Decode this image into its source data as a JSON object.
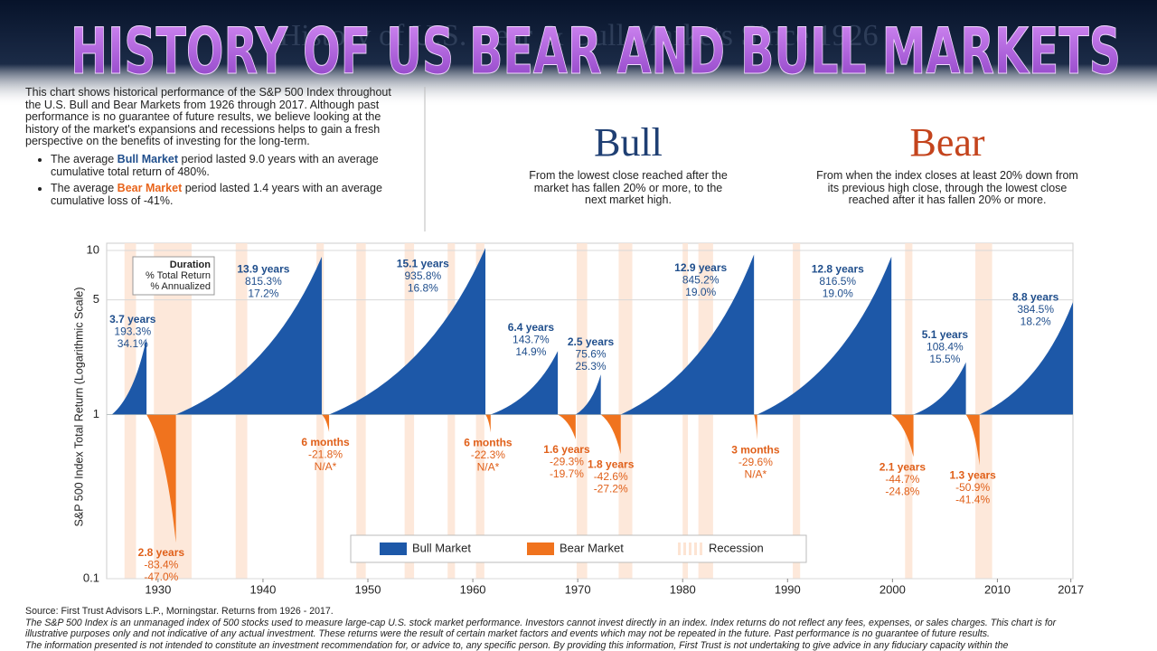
{
  "banner_title": "HISTORY OF US BEAR AND BULL MARKETS",
  "background_title": "History of U.S. Bear & Bull Markets Since 1926",
  "intro": "This chart shows historical performance of the S&P 500 Index throughout the U.S. Bull and Bear Markets from 1926 through 2017. Although past performance is no guarantee of future results, we believe looking at the history of the market's expansions and recessions helps to gain a fresh perspective on the benefits of investing for the long-term.",
  "bullets": [
    [
      "The average ",
      "Bull Market",
      " period lasted 9.0 years with an average cumulative total return of 480%."
    ],
    [
      "The average ",
      "Bear Market",
      " period lasted 1.4 years with an average cumulative loss of -41%."
    ]
  ],
  "bull": {
    "title": "Bull",
    "description": "From the lowest close reached after the market has fallen 20% or more, to the next market high."
  },
  "bear": {
    "title": "Bear",
    "description": "From when the index closes at least 20% down from its previous high close, through the lowest close reached after it has fallen 20% or more."
  },
  "chart_data": {
    "type": "area",
    "ylabel": "S&P 500 Index Total Return (Logarithmic Scale)",
    "log_scale": true,
    "grid": true,
    "ylim": [
      0.1,
      10
    ],
    "yticks": [
      0.1,
      1,
      5,
      10
    ],
    "xlim": [
      1925.1,
      2017.2
    ],
    "xticks": [
      1930,
      1940,
      1950,
      1960,
      1970,
      1980,
      1990,
      2000,
      2010,
      2017
    ],
    "key": [
      "Duration",
      "% Total Return",
      "% Annualized"
    ],
    "legend": [
      {
        "name": "Bull Market",
        "color": "#1d58a8"
      },
      {
        "name": "Bear Market",
        "color": "#f0731e"
      },
      {
        "name": "Recession",
        "color": "#fde4d3"
      }
    ],
    "bull_markets": [
      {
        "start": 1925.6,
        "end": 1928.9,
        "duration": "3.7 years",
        "return": 193.3,
        "return_label": "193.3%",
        "annualized": "34.1%"
      },
      {
        "start": 1931.7,
        "end": 1945.6,
        "duration": "13.9 years",
        "return": 815.3,
        "return_label": "815.3%",
        "annualized": "17.2%"
      },
      {
        "start": 1946.3,
        "end": 1961.2,
        "duration": "15.1 years",
        "return": 935.8,
        "return_label": "935.8%",
        "annualized": "16.8%"
      },
      {
        "start": 1961.7,
        "end": 1968.1,
        "duration": "6.4 years",
        "return": 143.7,
        "return_label": "143.7%",
        "annualized": "14.9%"
      },
      {
        "start": 1969.8,
        "end": 1972.2,
        "duration": "2.5 years",
        "return": 75.6,
        "return_label": "75.6%",
        "annualized": "25.3%"
      },
      {
        "start": 1974.1,
        "end": 1986.8,
        "duration": "12.9 years",
        "return": 845.2,
        "return_label": "845.2%",
        "annualized": "19.0%"
      },
      {
        "start": 1987.1,
        "end": 1999.9,
        "duration": "12.8 years",
        "return": 816.5,
        "return_label": "816.5%",
        "annualized": "19.0%"
      },
      {
        "start": 2002.0,
        "end": 2007.0,
        "duration": "5.1 years",
        "return": 108.4,
        "return_label": "108.4%",
        "annualized": "15.5%"
      },
      {
        "start": 2008.3,
        "end": 2017.2,
        "duration": "8.8 years",
        "return": 384.5,
        "return_label": "384.5%",
        "annualized": "18.2%"
      }
    ],
    "bear_markets": [
      {
        "start": 1928.9,
        "end": 1931.7,
        "duration": "2.8 years",
        "return": -83.4,
        "return_label": "-83.4%",
        "annualized": "-47.0%"
      },
      {
        "start": 1945.6,
        "end": 1946.3,
        "duration": "6 months",
        "return": -21.8,
        "return_label": "-21.8%",
        "annualized": "N/A*"
      },
      {
        "start": 1961.2,
        "end": 1961.7,
        "duration": "6 months",
        "return": -22.3,
        "return_label": "-22.3%",
        "annualized": "N/A*"
      },
      {
        "start": 1968.1,
        "end": 1969.8,
        "duration": "1.6 years",
        "return": -29.3,
        "return_label": "-29.3%",
        "annualized": "-19.7%"
      },
      {
        "start": 1972.2,
        "end": 1974.1,
        "duration": "1.8 years",
        "return": -42.6,
        "return_label": "-42.6%",
        "annualized": "-27.2%"
      },
      {
        "start": 1986.8,
        "end": 1987.1,
        "duration": "3 months",
        "return": -29.6,
        "return_label": "-29.6%",
        "annualized": "N/A*"
      },
      {
        "start": 1999.9,
        "end": 2002.0,
        "duration": "2.1 years",
        "return": -44.7,
        "return_label": "-44.7%",
        "annualized": "-24.8%"
      },
      {
        "start": 2007.0,
        "end": 2008.3,
        "duration": "1.3 years",
        "return": -50.9,
        "return_label": "-50.9%",
        "annualized": "-41.4%"
      }
    ],
    "recessions": [
      [
        1926.8,
        1927.9
      ],
      [
        1929.6,
        1933.2
      ],
      [
        1937.4,
        1938.5
      ],
      [
        1945.1,
        1945.8
      ],
      [
        1948.9,
        1949.8
      ],
      [
        1953.5,
        1954.4
      ],
      [
        1957.6,
        1958.3
      ],
      [
        1960.3,
        1961.1
      ],
      [
        1969.9,
        1970.9
      ],
      [
        1973.9,
        1975.2
      ],
      [
        1980.0,
        1980.5
      ],
      [
        1981.5,
        1982.9
      ],
      [
        1990.5,
        1991.2
      ],
      [
        2001.2,
        2001.9
      ],
      [
        2007.9,
        2009.5
      ]
    ]
  },
  "source": "Source: First Trust Advisors L.P., Morningstar. Returns from 1926 - 2017.",
  "disclaimer": [
    "The S&P 500 Index is an unmanaged index of 500 stocks used to measure large-cap U.S. stock market performance. Investors cannot invest directly in an index. Index returns do not reflect any fees, expenses, or sales charges. This chart is for",
    "illustrative purposes only and not indicative of any actual investment. These returns were the result of certain market factors and events which may not be repeated in the future. Past performance is no guarantee of future results.",
    "The information presented is not intended to constitute an investment recommendation for, or advice to, any specific person. By providing this information, First Trust is not undertaking to give advice in any fiduciary capacity within the"
  ]
}
